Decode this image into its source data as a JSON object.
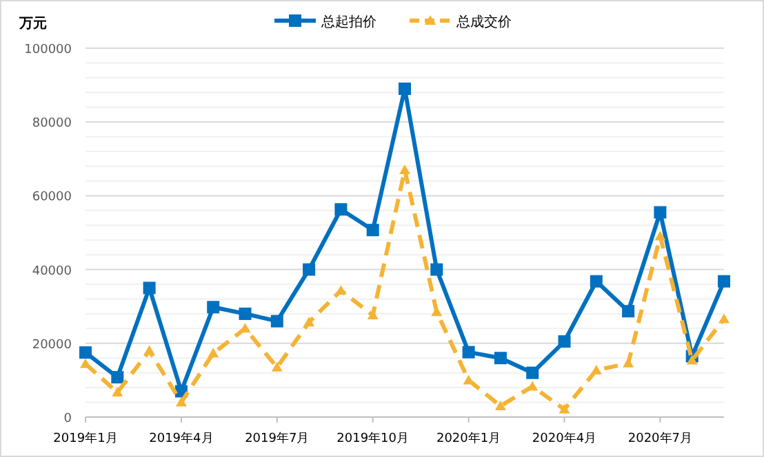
{
  "chart_data": {
    "type": "line",
    "ylabel": "万元",
    "categories": [
      "2019年1月",
      null,
      null,
      "2019年4月",
      null,
      null,
      "2019年7月",
      null,
      null,
      "2019年10月",
      null,
      null,
      "2020年1月",
      null,
      null,
      "2020年4月",
      null,
      null,
      "2020年7月",
      null,
      null
    ],
    "series": [
      {
        "name": "总起拍价",
        "color": "#0070c0",
        "marker": "square",
        "line_style": "solid",
        "values": [
          17500,
          10800,
          35000,
          7000,
          29800,
          28000,
          26000,
          40000,
          56300,
          50700,
          89000,
          40000,
          17600,
          16000,
          12000,
          20500,
          36800,
          28700,
          55500,
          16500,
          36800
        ]
      },
      {
        "name": "总成交价",
        "color": "#f5b335",
        "marker": "triangle",
        "line_style": "dashed",
        "values": [
          14400,
          6700,
          18000,
          4000,
          17300,
          24000,
          13500,
          25700,
          34300,
          27600,
          67000,
          28500,
          10000,
          3000,
          8300,
          2100,
          12700,
          14600,
          49000,
          15400,
          26600
        ]
      }
    ],
    "ylim": [
      0,
      100000
    ],
    "yticks": [
      0,
      {
        "value": 4000,
        "label": null
      },
      {
        "value": 8000,
        "label": null
      },
      {
        "value": 12000,
        "label": null
      },
      {
        "value": 16000,
        "label": null
      },
      20000,
      {
        "value": 24000,
        "label": null
      },
      {
        "value": 28000,
        "label": null
      },
      {
        "value": 32000,
        "label": null
      },
      {
        "value": 36000,
        "label": null
      },
      40000,
      {
        "value": 44000,
        "label": null
      },
      {
        "value": 48000,
        "label": null
      },
      {
        "value": 52000,
        "label": null
      },
      {
        "value": 56000,
        "label": null
      },
      60000,
      {
        "value": 64000,
        "label": null
      },
      {
        "value": 68000,
        "label": null
      },
      {
        "value": 72000,
        "label": null
      },
      {
        "value": 76000,
        "label": null
      },
      80000,
      {
        "value": 84000,
        "label": null
      },
      {
        "value": 88000,
        "label": null
      },
      {
        "value": 92000,
        "label": null
      },
      {
        "value": 96000,
        "label": null
      },
      100000
    ],
    "grid": "y",
    "legend": "top"
  }
}
